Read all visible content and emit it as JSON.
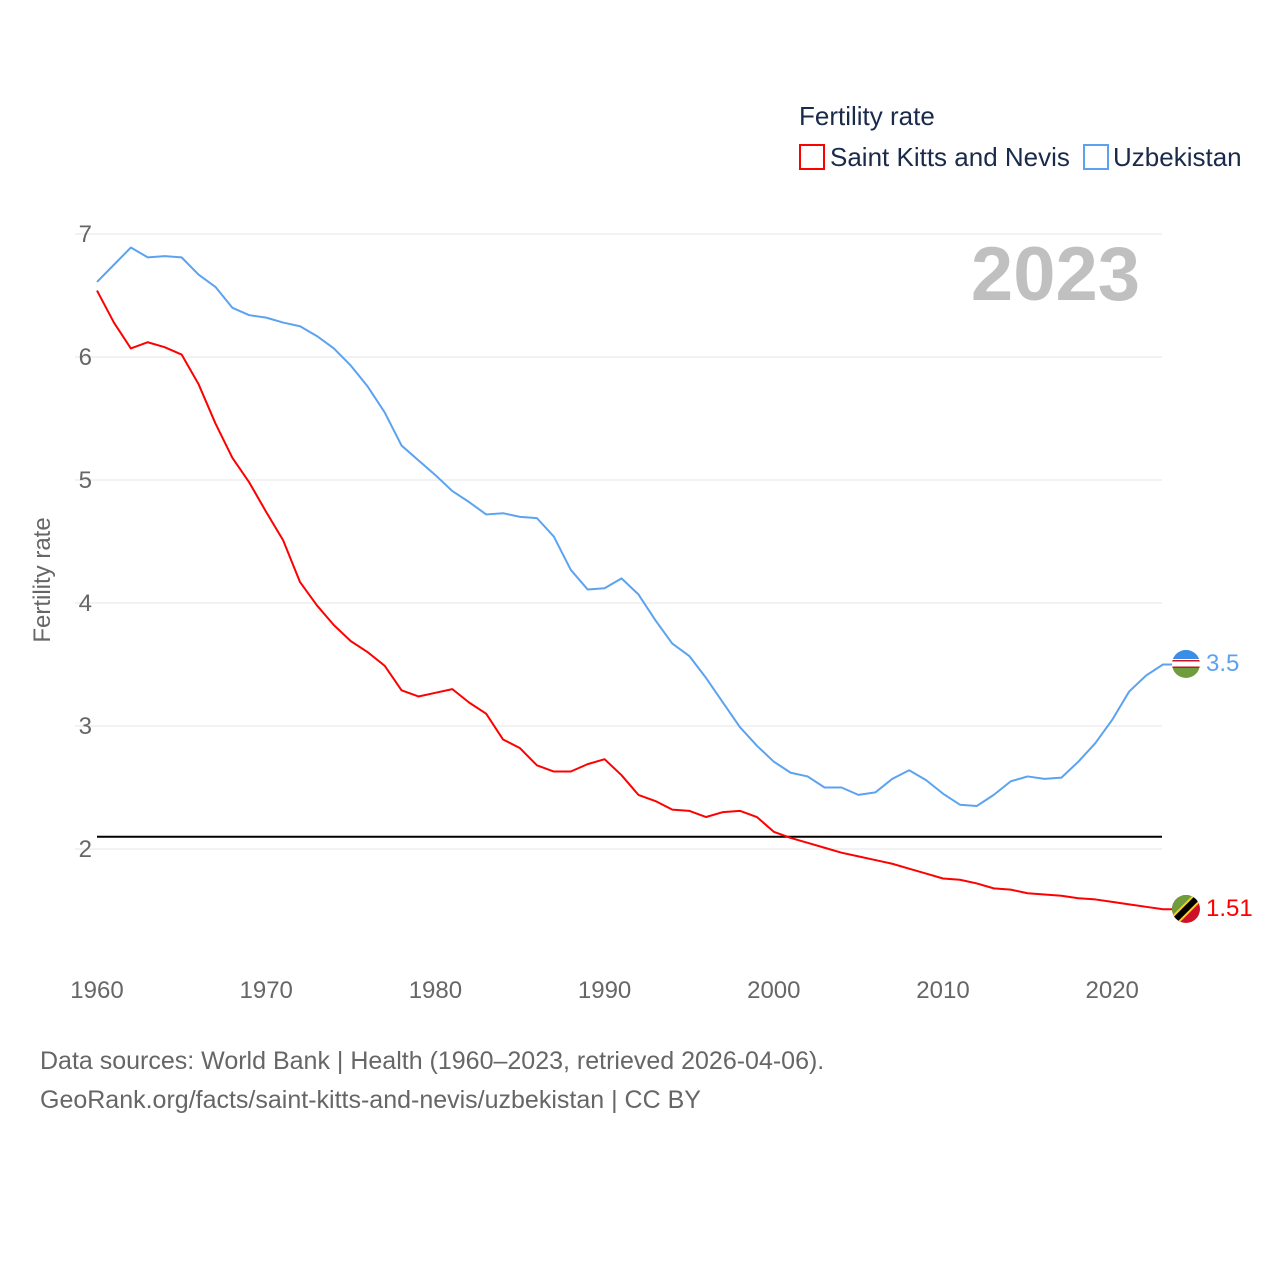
{
  "chart_data": {
    "type": "line",
    "title": "Fertility rate",
    "ylabel": "Fertility rate",
    "xlabel": "",
    "ylim": [
      1.2,
      7.1
    ],
    "xlim": [
      1960,
      2023
    ],
    "yticks": [
      "2",
      "3",
      "4",
      "5",
      "6",
      "7"
    ],
    "xticks": [
      "1960",
      "1970",
      "1980",
      "1990",
      "2000",
      "2010",
      "2020"
    ],
    "grid": true,
    "legend_position": "top-right",
    "year_label": "2023",
    "reference_line": 2.1,
    "x": [
      1960,
      1961,
      1962,
      1963,
      1964,
      1965,
      1966,
      1967,
      1968,
      1969,
      1970,
      1971,
      1972,
      1973,
      1974,
      1975,
      1976,
      1977,
      1978,
      1979,
      1980,
      1981,
      1982,
      1983,
      1984,
      1985,
      1986,
      1987,
      1988,
      1989,
      1990,
      1991,
      1992,
      1993,
      1994,
      1995,
      1996,
      1997,
      1998,
      1999,
      2000,
      2001,
      2002,
      2003,
      2004,
      2005,
      2006,
      2007,
      2008,
      2009,
      2010,
      2011,
      2012,
      2013,
      2014,
      2015,
      2016,
      2017,
      2018,
      2019,
      2020,
      2021,
      2022,
      2023
    ],
    "series": [
      {
        "name": "Saint Kitts and Nevis",
        "color": "#ff0000",
        "end_label": "1.51",
        "values": [
          6.54,
          6.28,
          6.07,
          6.12,
          6.08,
          6.02,
          5.78,
          5.46,
          5.18,
          4.98,
          4.74,
          4.51,
          4.17,
          3.98,
          3.82,
          3.69,
          3.6,
          3.49,
          3.29,
          3.24,
          3.27,
          3.3,
          3.19,
          3.1,
          2.89,
          2.82,
          2.68,
          2.63,
          2.63,
          2.69,
          2.73,
          2.6,
          2.44,
          2.39,
          2.32,
          2.31,
          2.26,
          2.3,
          2.31,
          2.26,
          2.14,
          2.09,
          2.05,
          2.01,
          1.97,
          1.94,
          1.91,
          1.88,
          1.84,
          1.8,
          1.76,
          1.75,
          1.72,
          1.68,
          1.67,
          1.64,
          1.63,
          1.62,
          1.6,
          1.59,
          1.57,
          1.55,
          1.53,
          1.51
        ]
      },
      {
        "name": "Uzbekistan",
        "color": "#5ba3f0",
        "end_label": "3.5",
        "values": [
          6.61,
          6.75,
          6.89,
          6.81,
          6.82,
          6.81,
          6.67,
          6.57,
          6.4,
          6.34,
          6.32,
          6.28,
          6.25,
          6.17,
          6.07,
          5.93,
          5.76,
          5.55,
          5.28,
          5.16,
          5.04,
          4.91,
          4.82,
          4.72,
          4.73,
          4.7,
          4.69,
          4.54,
          4.27,
          4.11,
          4.12,
          4.2,
          4.07,
          3.86,
          3.67,
          3.57,
          3.39,
          3.19,
          2.99,
          2.84,
          2.71,
          2.62,
          2.59,
          2.5,
          2.5,
          2.44,
          2.46,
          2.57,
          2.64,
          2.56,
          2.45,
          2.36,
          2.35,
          2.44,
          2.55,
          2.59,
          2.57,
          2.58,
          2.71,
          2.86,
          3.05,
          3.28,
          3.41,
          3.5
        ]
      }
    ]
  },
  "footer": {
    "line1": "Data sources: World Bank | Health (1960–2023, retrieved 2026-04-06).",
    "line2": "GeoRank.org/facts/saint-kitts-and-nevis/uzbekistan | CC BY"
  }
}
